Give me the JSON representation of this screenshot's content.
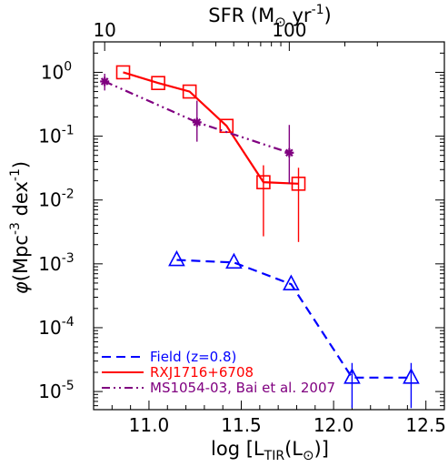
{
  "chart_data": {
    "type": "line",
    "x_axis": {
      "label": "log [L",
      "label_sub": "TIR",
      "label_paren_open": "(L",
      "label_sun": "⊙",
      "label_paren_close": ")]",
      "lim": [
        10.7,
        12.6
      ],
      "ticks": [
        11.0,
        11.5,
        12.0,
        12.5
      ],
      "tick_labels": [
        "11.0",
        "11.5",
        "12.0",
        "12.5"
      ]
    },
    "y_axis": {
      "scale": "log",
      "lim": [
        5.2e-06,
        3.0
      ],
      "label_prefix": "φ",
      "label_main": "(Mpc",
      "label_exp": "-3",
      "label_mid": " dex",
      "label_exp2": "-1",
      "label_end": ")",
      "tick_labels": [
        {
          "value": 1.0,
          "mantissa": "10",
          "exp": "0"
        },
        {
          "value": 0.1,
          "mantissa": "10",
          "exp": "-1"
        },
        {
          "value": 0.01,
          "mantissa": "10",
          "exp": "-2"
        },
        {
          "value": 0.001,
          "mantissa": "10",
          "exp": "-3"
        },
        {
          "value": 0.0001,
          "mantissa": "10",
          "exp": "-4"
        },
        {
          "value": 1e-05,
          "mantissa": "10",
          "exp": "-5"
        }
      ]
    },
    "top_axis": {
      "label": "SFR (M",
      "label_sun": "⊙",
      "label_rest": " yr",
      "label_exp": "-1",
      "label_end": ")",
      "note": "log L_TIR corresponding to SFR ticks",
      "major_ticks": [
        {
          "x": 10.76,
          "label": "10"
        },
        {
          "x": 11.76,
          "label": "100"
        }
      ],
      "minor_ticks_sfr": [
        20,
        30,
        40,
        50,
        60,
        70,
        80,
        90,
        200,
        300
      ]
    },
    "series": [
      {
        "name": "Field (z=0.8)",
        "color": "#0000ff",
        "dash": "dashed",
        "marker": "triangle",
        "points": [
          {
            "x": 11.15,
            "y": 0.00115
          },
          {
            "x": 11.46,
            "y": 0.00105
          },
          {
            "x": 11.77,
            "y": 0.00048
          },
          {
            "x": 12.1,
            "y": 1.65e-05
          },
          {
            "x": 12.42,
            "y": 1.65e-05
          }
        ],
        "err_low": [
          0.00115,
          0.00105,
          0.00048,
          5.5e-06,
          5.5e-06
        ],
        "err_high": [
          0.00115,
          0.00105,
          0.00048,
          2.8e-05,
          2.8e-05
        ]
      },
      {
        "name": "RXJ1716+6708",
        "color": "#ff0000",
        "dash": "solid",
        "marker": "square",
        "points": [
          {
            "x": 10.86,
            "y": 1.0
          },
          {
            "x": 11.05,
            "y": 0.68
          },
          {
            "x": 11.22,
            "y": 0.5
          },
          {
            "x": 11.42,
            "y": 0.145
          },
          {
            "x": 11.62,
            "y": 0.019
          },
          {
            "x": 11.81,
            "y": 0.018
          }
        ],
        "err_low": [
          1.0,
          0.68,
          0.5,
          0.145,
          0.0027,
          0.0022
        ],
        "err_high": [
          1.0,
          0.68,
          0.5,
          0.145,
          0.035,
          0.032
        ]
      },
      {
        "name": "MS1054-03, Bai et al. 2007",
        "color": "#800080",
        "dash": "dash-dot-dot",
        "marker": "asterisk",
        "points": [
          {
            "x": 10.76,
            "y": 0.72
          },
          {
            "x": 11.26,
            "y": 0.165
          },
          {
            "x": 11.76,
            "y": 0.055
          }
        ],
        "err_low": [
          0.52,
          0.082,
          0.018
        ],
        "err_high": [
          0.95,
          0.36,
          0.15
        ]
      }
    ],
    "legend_position": "bottom-left",
    "grid": false
  }
}
